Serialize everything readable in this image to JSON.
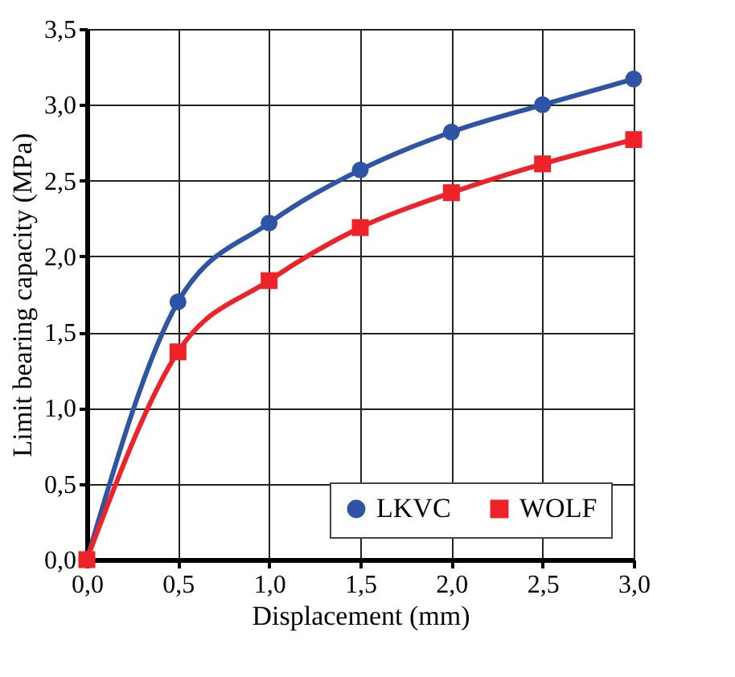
{
  "chart_data": {
    "type": "line",
    "xlabel": "Displacement (mm)",
    "ylabel": "Limit bearing capacity (MPa)",
    "x": [
      0,
      0.5,
      1,
      1.5,
      2,
      2.5,
      3
    ],
    "series": [
      {
        "name": "LKVC",
        "color": "#2e54a6",
        "marker": "circle",
        "values": [
          0,
          1.7,
          2.22,
          2.57,
          2.82,
          3.0,
          3.17
        ]
      },
      {
        "name": "WOLF",
        "color": "#ee2229",
        "marker": "square",
        "values": [
          0,
          1.37,
          1.84,
          2.19,
          2.42,
          2.61,
          2.77
        ]
      }
    ],
    "xlim": [
      0,
      3
    ],
    "ylim": [
      0,
      3.5
    ],
    "xticks": [
      {
        "value": 0,
        "label": "0,0"
      },
      {
        "value": 0.5,
        "label": "0,5"
      },
      {
        "value": 1,
        "label": "1,0"
      },
      {
        "value": 1.5,
        "label": "1,5"
      },
      {
        "value": 2,
        "label": "2,0"
      },
      {
        "value": 2.5,
        "label": "2,5"
      },
      {
        "value": 3,
        "label": "3,0"
      }
    ],
    "yticks": [
      {
        "value": 0,
        "label": "0,0"
      },
      {
        "value": 0.5,
        "label": "0,5"
      },
      {
        "value": 1,
        "label": "1,0"
      },
      {
        "value": 1.5,
        "label": "1,5"
      },
      {
        "value": 2,
        "label": "2,0"
      },
      {
        "value": 2.5,
        "label": "2,5"
      },
      {
        "value": 3,
        "label": "3,0"
      },
      {
        "value": 3.5,
        "label": "3,5"
      }
    ],
    "grid": true,
    "legend": "bottom right",
    "line_style": "solid"
  }
}
